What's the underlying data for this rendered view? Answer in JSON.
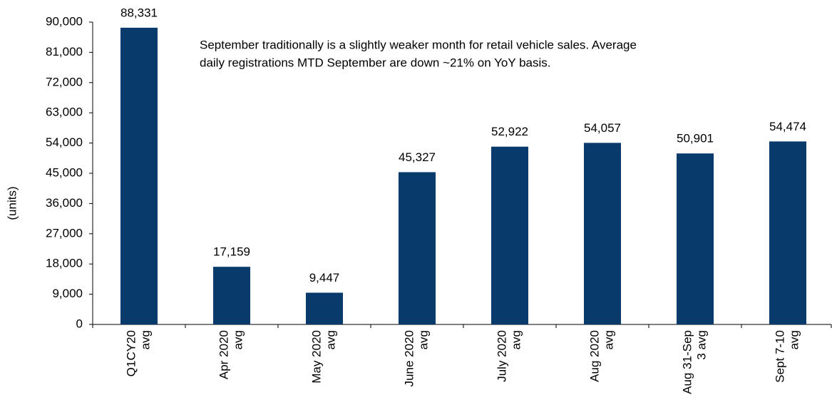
{
  "chart_data": {
    "type": "bar",
    "y_label": "(units)",
    "annotation": [
      "September traditionally is a slightly weaker month for retail vehicle sales. Average",
      "daily registrations MTD September are down ~21% on YoY basis."
    ],
    "categories": [
      [
        "Q1CY20",
        "avg"
      ],
      [
        "Apr 2020",
        "avg"
      ],
      [
        "May 2020",
        "avg"
      ],
      [
        "June 2020",
        "avg"
      ],
      [
        "July 2020",
        "avg"
      ],
      [
        "Aug 2020",
        "avg"
      ],
      [
        "Aug 31-Sep",
        "3 avg"
      ],
      [
        "Sept 7-10",
        "avg"
      ]
    ],
    "values": [
      88331,
      17159,
      9447,
      45327,
      52922,
      54057,
      50901,
      54474
    ],
    "value_labels": [
      "88,331",
      "17,159",
      "9,447",
      "45,327",
      "52,922",
      "54,057",
      "50,901",
      "54,474"
    ],
    "color": "#083a6b",
    "ylim": [
      0,
      90000
    ],
    "yticks": [
      0,
      {
        "value": 9000,
        "label": "9,000"
      },
      {
        "value": 18000,
        "label": "18,000"
      },
      {
        "value": 27000,
        "label": "27,000"
      },
      {
        "value": 36000,
        "label": "36,000"
      },
      {
        "value": 45000,
        "label": "45,000"
      },
      {
        "value": 54000,
        "label": "54,000"
      },
      {
        "value": 63000,
        "label": "63,000"
      },
      {
        "value": 72000,
        "label": "72,000"
      },
      {
        "value": 81000,
        "label": "81,000"
      },
      {
        "value": 90000,
        "label": "90,000"
      }
    ],
    "grid": false
  }
}
